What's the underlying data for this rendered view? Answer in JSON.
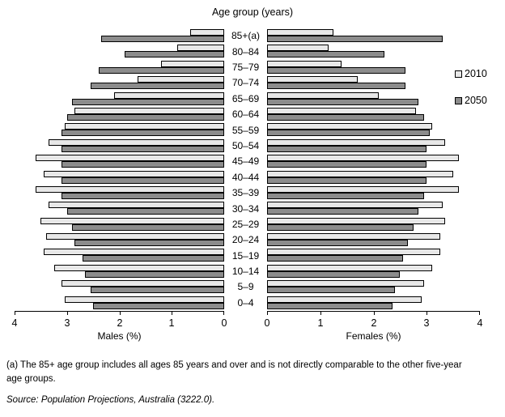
{
  "title": "Age group (years)",
  "legend": {
    "items": [
      {
        "label": "2010",
        "color": "#e8e8e8"
      },
      {
        "label": "2050",
        "color": "#8c8c8c"
      }
    ]
  },
  "colors": {
    "bar_2010": "#e8e8e8",
    "bar_2050": "#8c8c8c",
    "bar_border": "#000000"
  },
  "footnote": "(a) The 85+ age group includes all ages 85 years and over and is not directly comparable to the other five-year age groups.",
  "source": "Source: Population Projections, Australia (3222.0).",
  "chart_data": {
    "type": "bar",
    "subtype": "population-pyramid",
    "title": "Age group (years)",
    "categories": [
      "85+(a)",
      "80–84",
      "75–79",
      "70–74",
      "65–69",
      "60–64",
      "55–59",
      "50–54",
      "45–49",
      "40–44",
      "35–39",
      "30–34",
      "25–29",
      "20–24",
      "15–19",
      "10–14",
      "5–9",
      "0–4"
    ],
    "legend_entries": [
      "2010",
      "2050"
    ],
    "legend_position": "right",
    "grid": false,
    "panels": [
      {
        "name": "males",
        "xlabel": "Males (%)",
        "side": "left",
        "xlim": [
          0,
          4
        ],
        "ticks": [
          4,
          3,
          2,
          1,
          0
        ],
        "series": [
          {
            "name": "2010",
            "values": [
              0.65,
              0.9,
              1.2,
              1.65,
              2.1,
              2.85,
              3.05,
              3.35,
              3.6,
              3.45,
              3.6,
              3.35,
              3.5,
              3.4,
              3.45,
              3.25,
              3.1,
              3.05
            ]
          },
          {
            "name": "2050",
            "values": [
              2.35,
              1.9,
              2.4,
              2.55,
              2.9,
              3.0,
              3.1,
              3.1,
              3.1,
              3.1,
              3.1,
              3.0,
              2.9,
              2.85,
              2.7,
              2.65,
              2.55,
              2.5
            ]
          }
        ]
      },
      {
        "name": "females",
        "xlabel": "Females (%)",
        "side": "right",
        "xlim": [
          0,
          4
        ],
        "ticks": [
          0,
          1,
          2,
          3,
          4
        ],
        "series": [
          {
            "name": "2010",
            "values": [
              1.25,
              1.15,
              1.4,
              1.7,
              2.1,
              2.8,
              3.1,
              3.35,
              3.6,
              3.5,
              3.6,
              3.3,
              3.35,
              3.25,
              3.25,
              3.1,
              2.95,
              2.9
            ]
          },
          {
            "name": "2050",
            "values": [
              3.3,
              2.2,
              2.6,
              2.6,
              2.85,
              2.95,
              3.05,
              3.0,
              3.0,
              3.0,
              2.95,
              2.85,
              2.75,
              2.65,
              2.55,
              2.5,
              2.4,
              2.35
            ]
          }
        ]
      }
    ]
  }
}
